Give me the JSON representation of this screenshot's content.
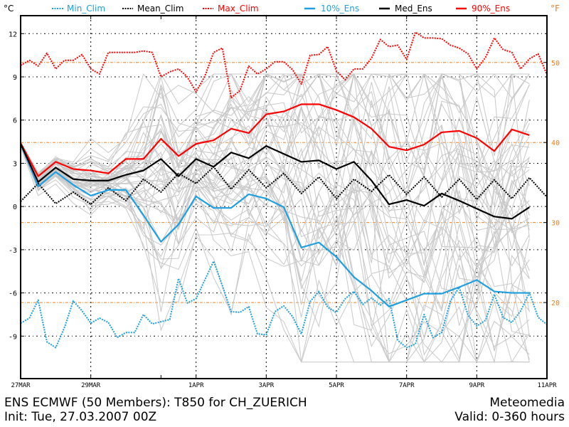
{
  "colors": {
    "min_clim": "#1e9fe0",
    "mean_clim": "#000000",
    "max_clim": "#ff0000",
    "p10": "#1e9fe0",
    "median": "#000000",
    "p90": "#ff0000",
    "members": "#c8c8c8",
    "fahrenheit": "#f08020",
    "grid": "#000000"
  },
  "legend": {
    "celsius_unit": "°C",
    "fahrenheit_unit": "°F",
    "items": [
      {
        "label": "Min_Clim",
        "style": "dotted",
        "color": "#1e9fe0"
      },
      {
        "label": "Mean_Clim",
        "style": "dotted",
        "color": "#000000"
      },
      {
        "label": "Max_Clim",
        "style": "dotted",
        "color": "#ff0000"
      },
      {
        "label": "10%_Ens",
        "style": "solid",
        "color": "#1e9fe0"
      },
      {
        "label": "Med_Ens",
        "style": "solid",
        "color": "#000000"
      },
      {
        "label": "90%_Ens",
        "style": "solid",
        "color": "#ff0000"
      }
    ]
  },
  "footer": {
    "title": "ENS ECMWF (50 Members): T850 for CH_ZUERICH",
    "init": "Init: Tue, 27.03.2007 00Z",
    "brand": "Meteomedia",
    "valid": "Valid: 0-360 hours"
  },
  "chart_data": {
    "type": "line",
    "title": "ENS ECMWF (50 Members): T850 for CH_ZUERICH",
    "xlabel": "",
    "ylabel": "°C",
    "ylabel_right": "°F",
    "xlim_hours": [
      0,
      360
    ],
    "ylim": [
      -11.95,
      13.25
    ],
    "grid": true,
    "legend_position": "top",
    "x_ticks": [
      {
        "hour": 0,
        "label": "27MAR"
      },
      {
        "hour": 48,
        "label": "29MAR"
      },
      {
        "hour": 120,
        "label": "1APR"
      },
      {
        "hour": 168,
        "label": "3APR"
      },
      {
        "hour": 216,
        "label": "5APR"
      },
      {
        "hour": 264,
        "label": "7APR"
      },
      {
        "hour": 312,
        "label": "9APR"
      },
      {
        "hour": 360,
        "label": "11APR"
      }
    ],
    "x_minor_tick_hours": [
      96
    ],
    "y_ticks": [
      -9,
      -6,
      -3,
      0,
      3,
      6,
      9,
      12
    ],
    "y_ticks_f": [
      20,
      30,
      40,
      50
    ],
    "member_count": 50,
    "ens_step_hours": 12,
    "clim_step_hours": 6,
    "mean_clim_step_hours": 12,
    "series": [
      {
        "name": "90%_Ens",
        "values": [
          4.4,
          2.1,
          3.1,
          2.6,
          2.5,
          2.3,
          3.3,
          3.3,
          4.7,
          3.5,
          4.35,
          4.6,
          5.4,
          5.1,
          6.4,
          6.6,
          7.1,
          7.1,
          6.7,
          6.2,
          5.4,
          4.15,
          3.9,
          4.3,
          5.15,
          5.25,
          4.75,
          3.85,
          5.35,
          4.95
        ]
      },
      {
        "name": "Med_Ens",
        "values": [
          4.35,
          1.7,
          2.7,
          1.9,
          1.8,
          1.8,
          2.2,
          2.5,
          3.3,
          2.1,
          3.3,
          2.75,
          3.75,
          3.35,
          4.2,
          3.65,
          3.1,
          3.2,
          2.6,
          3.1,
          1.8,
          0.15,
          0.45,
          0.05,
          0.9,
          0.4,
          -0.15,
          -0.7,
          -0.85,
          -0.05
        ]
      },
      {
        "name": "10%_Ens",
        "values": [
          4.35,
          1.4,
          2.4,
          1.5,
          0.75,
          1.15,
          1.15,
          -0.6,
          -2.45,
          -1.25,
          0.7,
          -0.1,
          -0.1,
          0.85,
          0.55,
          -0.05,
          -2.85,
          -2.5,
          -3.5,
          -4.9,
          -5.85,
          -6.95,
          -6.5,
          -6.05,
          -6.05,
          -5.6,
          -5.1,
          -5.9,
          -6.0,
          -6.0
        ]
      },
      {
        "name": "Mean_Clim",
        "values": [
          0.35,
          1.6,
          0.2,
          1.0,
          0.15,
          1.3,
          0.4,
          1.9,
          1.0,
          2.3,
          1.6,
          2.75,
          1.2,
          2.55,
          1.3,
          2.3,
          0.9,
          2.05,
          0.55,
          1.9,
          1.05,
          2.2,
          0.85,
          2.05,
          0.65,
          1.9,
          0.5,
          1.85,
          0.55,
          2.0,
          0.65
        ]
      },
      {
        "name": "Max_Clim",
        "values": [
          9.8,
          10.15,
          9.75,
          10.65,
          9.55,
          10.15,
          10.15,
          10.55,
          9.55,
          9.2,
          10.7,
          10.7,
          10.7,
          10.7,
          10.8,
          10.7,
          9.0,
          9.35,
          9.55,
          9.0,
          7.95,
          9.05,
          10.7,
          11.0,
          7.55,
          8.05,
          9.75,
          9.2,
          9.55,
          10.05,
          10.05,
          9.5,
          8.5,
          10.5,
          10.55,
          11.1,
          9.4,
          8.8,
          9.55,
          9.55,
          10.3,
          11.6,
          11.1,
          11.2,
          10.2,
          12.1,
          11.7,
          11.7,
          11.65,
          11.2,
          11.0,
          10.6,
          9.55,
          10.35,
          11.7,
          10.9,
          10.7,
          9.55,
          10.25,
          10.6,
          9.15
        ]
      },
      {
        "name": "Min_Clim",
        "values": [
          -8.1,
          -7.75,
          -6.5,
          -9.4,
          -9.8,
          -8.4,
          -6.55,
          -7.25,
          -8.1,
          -7.75,
          -8.05,
          -9.1,
          -8.75,
          -8.75,
          -7.5,
          -8.15,
          -8.0,
          -7.85,
          -5.0,
          -6.7,
          -6.4,
          -5.1,
          -3.8,
          -5.5,
          -7.3,
          -7.35,
          -6.95,
          -8.85,
          -8.9,
          -7.3,
          -6.9,
          -7.65,
          -8.85,
          -6.6,
          -5.9,
          -7.0,
          -7.35,
          -6.4,
          -5.9,
          -6.8,
          -6.35,
          -6.85,
          -6.4,
          -9.3,
          -9.8,
          -9.55,
          -7.5,
          -9.1,
          -8.75,
          -6.55,
          -5.6,
          -7.55,
          -8.3,
          -7.9,
          -6.1,
          -7.7,
          -8.05,
          -7.25,
          -6.0,
          -7.7,
          -8.2
        ]
      }
    ]
  }
}
